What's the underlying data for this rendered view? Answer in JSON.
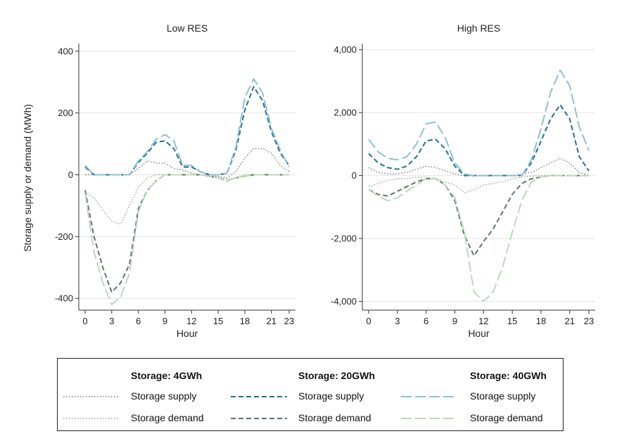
{
  "y_axis_label": "Storage supply or demand (MWh)",
  "chart_data": [
    {
      "type": "line",
      "title": "Low RES",
      "xlabel": "Hour",
      "ylabel": "Storage supply or demand (MWh)",
      "x": [
        0,
        1,
        2,
        3,
        4,
        5,
        6,
        7,
        8,
        9,
        10,
        11,
        12,
        13,
        14,
        15,
        16,
        17,
        18,
        19,
        20,
        21,
        22,
        23
      ],
      "xticks": [
        0,
        3,
        6,
        9,
        12,
        15,
        18,
        21,
        23
      ],
      "yticks": [
        -400,
        -200,
        0,
        200,
        400
      ],
      "ylim": [
        -420,
        420
      ],
      "ytick_labels": [
        "-400",
        "-200",
        "0",
        "200",
        "400"
      ],
      "grid": true,
      "series": [
        {
          "name": "Storage supply",
          "group": "Storage: 4GWh",
          "values": [
            0,
            0,
            0,
            0,
            0,
            0,
            20,
            45,
            38,
            38,
            20,
            15,
            5,
            0,
            -5,
            -5,
            -10,
            10,
            55,
            85,
            85,
            70,
            30,
            10
          ]
        },
        {
          "name": "Storage demand",
          "group": "Storage: 4GWh",
          "values": [
            -55,
            -75,
            -115,
            -150,
            -160,
            -100,
            -40,
            -10,
            0,
            0,
            0,
            0,
            0,
            0,
            0,
            -5,
            -15,
            -10,
            0,
            0,
            0,
            0,
            0,
            0
          ]
        },
        {
          "name": "Storage supply",
          "group": "Storage: 20GWh",
          "values": [
            25,
            0,
            0,
            0,
            0,
            0,
            40,
            70,
            105,
            110,
            85,
            25,
            25,
            10,
            0,
            0,
            5,
            80,
            210,
            285,
            240,
            140,
            70,
            30
          ]
        },
        {
          "name": "Storage demand",
          "group": "Storage: 20GWh",
          "values": [
            -50,
            -200,
            -300,
            -380,
            -350,
            -290,
            -110,
            -50,
            -20,
            0,
            0,
            0,
            0,
            0,
            -5,
            -10,
            -20,
            -10,
            -5,
            0,
            0,
            0,
            0,
            0
          ]
        },
        {
          "name": "Storage supply",
          "group": "Storage: 40GWh",
          "values": [
            30,
            0,
            0,
            0,
            0,
            0,
            45,
            75,
            115,
            130,
            110,
            30,
            30,
            10,
            0,
            0,
            5,
            90,
            250,
            310,
            265,
            150,
            80,
            25
          ]
        },
        {
          "name": "Storage demand",
          "group": "Storage: 40GWh",
          "values": [
            -60,
            -250,
            -350,
            -420,
            -395,
            -320,
            -120,
            -50,
            -20,
            0,
            0,
            0,
            0,
            0,
            -5,
            -10,
            -20,
            -10,
            -5,
            0,
            0,
            0,
            0,
            0
          ]
        }
      ]
    },
    {
      "type": "line",
      "title": "High RES",
      "xlabel": "Hour",
      "ylabel": "",
      "x": [
        0,
        1,
        2,
        3,
        4,
        5,
        6,
        7,
        8,
        9,
        10,
        11,
        12,
        13,
        14,
        15,
        16,
        17,
        18,
        19,
        20,
        21,
        22,
        23
      ],
      "xticks": [
        0,
        3,
        6,
        9,
        12,
        15,
        18,
        21,
        23
      ],
      "yticks": [
        -4000,
        -2000,
        0,
        2000,
        4000
      ],
      "ylim": [
        -4100,
        4150
      ],
      "ytick_labels": [
        "-4,000",
        "-2,000",
        "0",
        "2,000",
        "4,000"
      ],
      "grid": true,
      "series": [
        {
          "name": "Storage supply",
          "group": "Storage: 4GWh",
          "values": [
            250,
            100,
            50,
            50,
            100,
            200,
            300,
            250,
            150,
            50,
            0,
            0,
            0,
            0,
            0,
            0,
            50,
            100,
            250,
            400,
            550,
            400,
            100,
            0
          ]
        },
        {
          "name": "Storage demand",
          "group": "Storage: 4GWh",
          "values": [
            -350,
            -250,
            -150,
            -100,
            -100,
            -50,
            -50,
            -100,
            -200,
            -300,
            -550,
            -450,
            -300,
            -250,
            -200,
            -100,
            -50,
            -20,
            0,
            0,
            0,
            0,
            0,
            0
          ]
        },
        {
          "name": "Storage supply",
          "group": "Storage: 20GWh",
          "values": [
            700,
            400,
            250,
            200,
            300,
            600,
            1100,
            1150,
            850,
            300,
            0,
            0,
            0,
            0,
            0,
            0,
            0,
            400,
            1100,
            1800,
            2250,
            1800,
            600,
            150
          ]
        },
        {
          "name": "Storage demand",
          "group": "Storage: 20GWh",
          "values": [
            -450,
            -600,
            -650,
            -500,
            -350,
            -200,
            -100,
            -100,
            -300,
            -800,
            -1900,
            -2550,
            -2100,
            -1700,
            -1150,
            -600,
            -250,
            -100,
            -50,
            0,
            0,
            0,
            0,
            0
          ]
        },
        {
          "name": "Storage supply",
          "group": "Storage: 40GWh",
          "values": [
            1150,
            750,
            550,
            500,
            600,
            1000,
            1650,
            1700,
            1200,
            400,
            50,
            0,
            0,
            0,
            0,
            0,
            0,
            500,
            1500,
            2650,
            3350,
            2850,
            1550,
            800
          ]
        },
        {
          "name": "Storage demand",
          "group": "Storage: 40GWh",
          "values": [
            -450,
            -650,
            -800,
            -700,
            -500,
            -300,
            -100,
            -100,
            -300,
            -700,
            -1800,
            -3700,
            -4000,
            -3700,
            -2900,
            -1800,
            -800,
            -200,
            -50,
            0,
            0,
            0,
            0,
            0
          ]
        }
      ]
    }
  ],
  "legend": {
    "groups": [
      {
        "title": "Storage: 4GWh",
        "supply_label": "Storage supply",
        "demand_label": "Storage demand",
        "supply_color": "#7a7a7a",
        "demand_color": "#9e9e9e",
        "dash": "dotted"
      },
      {
        "title": "Storage: 20GWh",
        "supply_label": "Storage supply",
        "demand_label": "Storage demand",
        "supply_color": "#1f6f9a",
        "demand_color": "#5f7469",
        "dash": "short-dash"
      },
      {
        "title": "Storage: 40GWh",
        "supply_label": "Storage supply",
        "demand_label": "Storage demand",
        "supply_color": "#8cc0d6",
        "demand_color": "#bcd9b8",
        "dash": "long-dash"
      }
    ]
  }
}
